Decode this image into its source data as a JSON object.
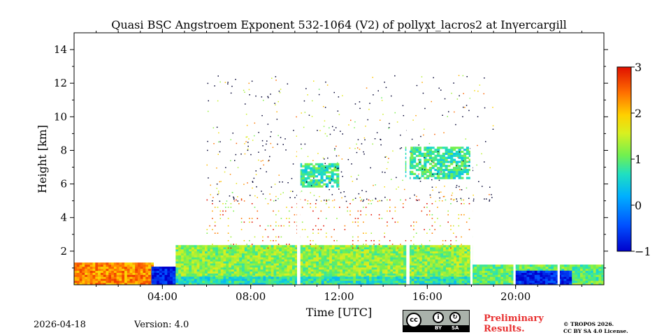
{
  "chart_data": {
    "type": "heatmap",
    "title": "Quasi BSC Angstroem Exponent 532-1064 (V2) of pollyxt_lacros2 at Invercargill",
    "xlabel": "Time [UTC]",
    "ylabel": "Height [km]",
    "x_range_hours": [
      0,
      24
    ],
    "x_ticks": [
      4,
      8,
      12,
      16,
      20
    ],
    "x_tick_labels": [
      "04:00",
      "08:00",
      "12:00",
      "16:00",
      "20:00"
    ],
    "ylim_km": [
      0,
      15
    ],
    "y_ticks": [
      2,
      4,
      6,
      8,
      10,
      12,
      14
    ],
    "y_tick_labels": [
      "2",
      "4",
      "6",
      "8",
      "10",
      "12",
      "14"
    ],
    "colorbar": {
      "range": [
        -1,
        3
      ],
      "ticks": [
        -1,
        0,
        1,
        2,
        3
      ],
      "tick_labels": [
        "−1",
        "0",
        "1",
        "2",
        "3"
      ],
      "colormap": "jet"
    },
    "data_gaps_hours": [
      [
        10.1,
        10.25
      ],
      [
        15.05,
        15.2
      ],
      [
        17.95,
        18.05
      ],
      [
        19.9,
        20.0
      ],
      [
        21.9,
        22.0
      ]
    ],
    "regions": [
      {
        "name": "boundary-layer-orange",
        "t_start": 0.0,
        "t_end": 3.5,
        "h_bottom": 0.0,
        "h_top": 1.3,
        "value": 2.3
      },
      {
        "name": "low-layer-black-blue",
        "t_start": 3.5,
        "t_end": 4.6,
        "h_bottom": 0.0,
        "h_top": 1.0,
        "value": -0.8
      },
      {
        "name": "boundary-layer-green",
        "t_start": 4.6,
        "t_end": 18.0,
        "h_bottom": 0.2,
        "h_top": 2.3,
        "value": 1.2
      },
      {
        "name": "surface-layer-green",
        "t_start": 4.6,
        "t_end": 24.0,
        "h_bottom": 0.0,
        "h_top": 0.4,
        "value": 0.7
      },
      {
        "name": "aerosol-noisy-orange",
        "t_start": 6.0,
        "t_end": 18.0,
        "h_bottom": 2.0,
        "h_top": 5.0,
        "value": 2.2
      },
      {
        "name": "cloud-layer-a",
        "t_start": 10.2,
        "t_end": 11.9,
        "h_bottom": 5.8,
        "h_top": 7.2,
        "value": 0.8
      },
      {
        "name": "cloud-layer-b",
        "t_start": 15.0,
        "t_end": 18.0,
        "h_bottom": 6.3,
        "h_top": 8.2,
        "value": 0.8
      },
      {
        "name": "evening-layer",
        "t_start": 18.0,
        "t_end": 24.0,
        "h_bottom": 0.0,
        "h_top": 1.2,
        "value": 1.0
      },
      {
        "name": "evening-black-blue",
        "t_start": 19.9,
        "t_end": 22.5,
        "h_bottom": 0.0,
        "h_top": 0.8,
        "value": -0.7
      }
    ]
  },
  "footer": {
    "date": "2026-04-18",
    "version": "Version: 4.0",
    "preliminary_line1": "Preliminary",
    "preliminary_line2": "Results.",
    "copyright_line1": "© TROPOS 2026.",
    "copyright_line2": "CC BY SA 4.0 License.",
    "license_badge": {
      "icon": "cc-by-sa-icon",
      "by_label": "BY",
      "sa_label": "SA",
      "cc_label": "cc"
    }
  }
}
